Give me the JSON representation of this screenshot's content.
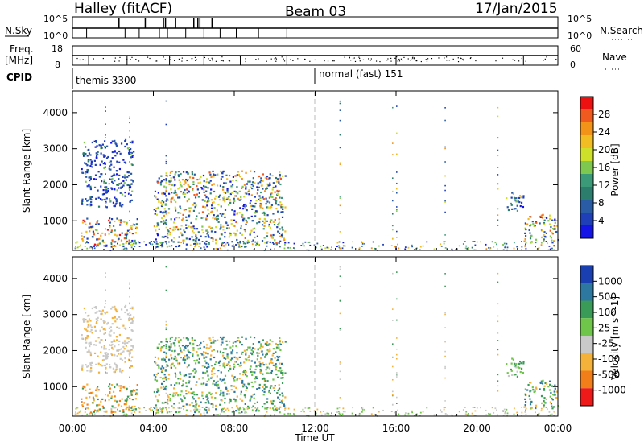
{
  "header": {
    "station": "Halley (fitACF)",
    "beam": "Beam 03",
    "date": "17/Jan/2015"
  },
  "aux_panels": {
    "nsky": {
      "left_label": "N.Sky",
      "left_ticks": [
        "10^5",
        "10^0"
      ],
      "right_ticks": [
        "10^5",
        "10^0"
      ],
      "right_label": "N.Search"
    },
    "freq": {
      "left_label_1": "Freq.",
      "left_label_2": "[MHz]",
      "left_ticks": [
        "18",
        "8"
      ],
      "right_ticks": [
        "60",
        "0"
      ],
      "right_label": "Nave"
    },
    "cpid": {
      "label": "CPID",
      "modes": [
        {
          "name": "themis 3300",
          "start": "00:00"
        },
        {
          "name": "normal (fast) 151",
          "start": "12:00"
        }
      ]
    }
  },
  "chart_data": [
    {
      "type": "heatmap",
      "title": "",
      "quantity": "Power",
      "ylabel": "Slant Range [km]",
      "colorbar_label": "Power [dB]",
      "x_range_hours": [
        0,
        24
      ],
      "ylim": [
        180,
        4600
      ],
      "yticks": [
        1000,
        2000,
        3000,
        4000
      ],
      "colorbar_ticks": [
        "28",
        "24",
        "20",
        "16",
        "12",
        "8",
        "4"
      ],
      "colorbar_colors": [
        "#ee1111",
        "#f05a1e",
        "#f39418",
        "#f2bd22",
        "#cfe02a",
        "#7ec850",
        "#3b9a78",
        "#2c7d6c",
        "#2a5ca6",
        "#1e3fb8",
        "#1414e6"
      ],
      "regions": [
        {
          "t": [
            0.4,
            3.2
          ],
          "r": [
            300,
            1100
          ],
          "level": "mixed-high"
        },
        {
          "t": [
            0.4,
            3.0
          ],
          "r": [
            1400,
            3300
          ],
          "level": "low"
        },
        {
          "t": [
            4.0,
            10.5
          ],
          "r": [
            300,
            2400
          ],
          "level": "mixed"
        },
        {
          "t": [
            21.3,
            22.3
          ],
          "r": [
            1300,
            1800
          ],
          "level": "low-mid"
        },
        {
          "t": [
            22.3,
            24.0
          ],
          "r": [
            400,
            1200
          ],
          "level": "mixed"
        }
      ]
    },
    {
      "type": "heatmap",
      "title": "",
      "quantity": "Velocity",
      "ylabel": "Slant Range [km]",
      "colorbar_label": "Velocity [m s^-1]",
      "x_range_hours": [
        0,
        24
      ],
      "ylim": [
        180,
        4600
      ],
      "yticks": [
        1000,
        2000,
        3000,
        4000
      ],
      "colorbar_ticks": [
        "1000",
        "500",
        "100",
        "25",
        "-25",
        "-100",
        "-500",
        "-1000"
      ],
      "colorbar_colors": [
        "#1a3fb0",
        "#2d78a0",
        "#3a9a58",
        "#6ec54a",
        "#c9c9c9",
        "#f5b23a",
        "#f27e1a",
        "#ee1a1a"
      ],
      "xlabel": "Time UT",
      "xticks": [
        "00:00",
        "04:00",
        "08:00",
        "12:00",
        "16:00",
        "20:00",
        "00:00"
      ]
    }
  ]
}
